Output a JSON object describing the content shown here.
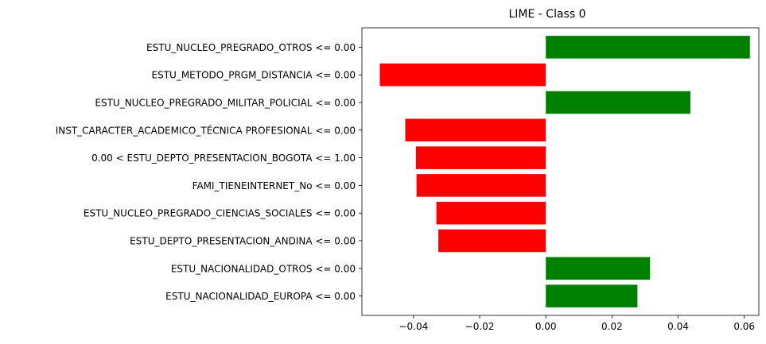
{
  "chart_data": {
    "type": "bar",
    "orientation": "horizontal",
    "title": "LIME - Class 0",
    "xlabel": "",
    "ylabel": "",
    "xlim": [
      -0.0556,
      0.0644
    ],
    "grid": false,
    "colors": {
      "positive": "#008000",
      "negative": "#ff0000",
      "axis": "#000000"
    },
    "categories": [
      "ESTU_NUCLEO_PREGRADO_OTROS <= 0.00",
      "ESTU_METODO_PRGM_DISTANCIA <= 0.00",
      "ESTU_NUCLEO_PREGRADO_MILITAR_POLICIAL <= 0.00",
      "INST_CARACTER_ACADEMICO_TÉCNICA PROFESIONAL <= 0.00",
      "0.00 < ESTU_DEPTO_PRESENTACION_BOGOTA <= 1.00",
      "FAMI_TIENEINTERNET_No <= 0.00",
      "ESTU_NUCLEO_PREGRADO_CIENCIAS_SOCIALES <= 0.00",
      "ESTU_DEPTO_PRESENTACION_ANDINA <= 0.00",
      "ESTU_NACIONALIDAD_OTROS <= 0.00",
      "ESTU_NACIONALIDAD_EUROPA <= 0.00"
    ],
    "values": [
      0.0617,
      -0.0502,
      0.0437,
      -0.0425,
      -0.0393,
      -0.0391,
      -0.0331,
      -0.0325,
      0.0315,
      0.0277
    ],
    "xticks": [
      -0.04,
      -0.02,
      0.0,
      0.02,
      0.04,
      0.06
    ],
    "xtick_labels": [
      "−0.04",
      "−0.02",
      "0.00",
      "0.02",
      "0.04",
      "0.06"
    ]
  }
}
